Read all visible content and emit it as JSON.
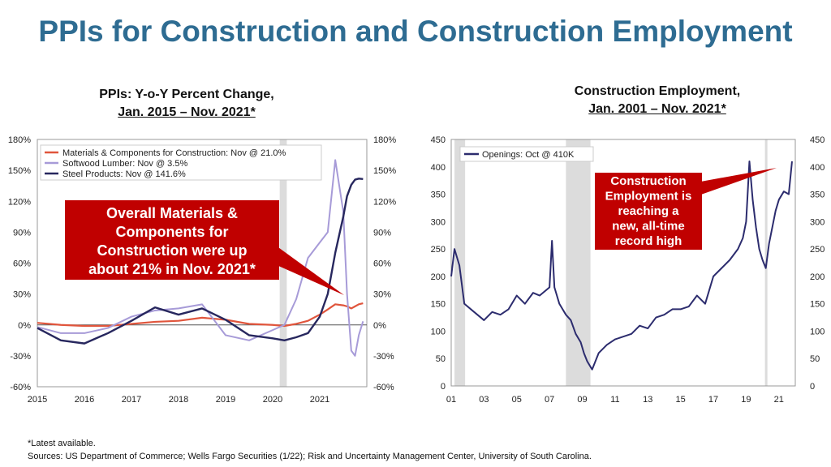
{
  "title": "PPIs for Construction and Construction Employment",
  "left_subtitle": {
    "line1": "PPIs: Y-o-Y Percent Change,",
    "line2": "Jan. 2015 – Nov. 2021*"
  },
  "right_subtitle": {
    "line1": "Construction Employment,",
    "line2": "Jan. 2001 – Nov. 2021*"
  },
  "left_callout": [
    "Overall Materials &",
    "Components for",
    "Construction were up",
    "about 21% in Nov. 2021*"
  ],
  "right_callout": [
    "Construction",
    "Employment is",
    "reaching a",
    "new, all-time",
    "record high"
  ],
  "footnote": "*Latest available.",
  "sources": "Sources: US Department of Commerce; Wells Fargo Securities (1/22); Risk and Uncertainty Management Center, University of South Carolina.",
  "colors": {
    "title": "#2e6c92",
    "callout": "#c00000",
    "materials": "#e0553c",
    "lumber": "#a79bd8",
    "steel": "#27275e",
    "openings": "#2c2c6e",
    "recession": "#dcdcdc"
  },
  "chart_data": [
    {
      "type": "line",
      "ylim": [
        -60,
        180
      ],
      "y_ticks": [
        "-60%",
        "-30%",
        "0%",
        "30%",
        "60%",
        "90%",
        "120%",
        "150%",
        "180%"
      ],
      "x_ticks": [
        "2015",
        "2016",
        "2017",
        "2018",
        "2019",
        "2020",
        "2021"
      ],
      "x_range": [
        2015.0,
        2022.0
      ],
      "recession_shading": [
        [
          2020.15,
          2020.3
        ]
      ],
      "x": [
        2015.0,
        2015.5,
        2016.0,
        2016.5,
        2017.0,
        2017.5,
        2018.0,
        2018.5,
        2019.0,
        2019.5,
        2020.0,
        2020.25,
        2020.5,
        2020.75,
        2021.0,
        2021.17,
        2021.33,
        2021.5,
        2021.58,
        2021.67,
        2021.75,
        2021.83,
        2021.92
      ],
      "series": [
        {
          "name": "Materials & Components for Construction: Nov @ 21.0%",
          "values": [
            2,
            0,
            -1,
            -1,
            1,
            3,
            4,
            7,
            5,
            1,
            0,
            -1,
            1,
            4,
            10,
            15,
            20,
            19,
            18,
            16,
            18,
            20,
            21
          ]
        },
        {
          "name": "Softwood Lumber: Nov @ 3.5%",
          "values": [
            -2,
            -8,
            -8,
            -3,
            8,
            14,
            16,
            20,
            -10,
            -15,
            -5,
            0,
            25,
            65,
            80,
            90,
            160,
            110,
            30,
            -25,
            -30,
            -10,
            3.5
          ]
        },
        {
          "name": "Steel Products: Nov @ 141.6%",
          "values": [
            -3,
            -15,
            -18,
            -8,
            4,
            17,
            10,
            16,
            5,
            -10,
            -13,
            -15,
            -12,
            -8,
            8,
            30,
            70,
            105,
            125,
            136,
            141,
            142,
            141.6
          ]
        }
      ]
    },
    {
      "type": "line",
      "ylim": [
        0,
        450
      ],
      "y_ticks": [
        "0",
        "50",
        "100",
        "150",
        "200",
        "250",
        "300",
        "350",
        "400",
        "450"
      ],
      "x_ticks": [
        "01",
        "03",
        "05",
        "07",
        "09",
        "11",
        "13",
        "15",
        "17",
        "19",
        "21"
      ],
      "x_range": [
        2001.0,
        2022.0
      ],
      "recession_shading": [
        [
          2001.2,
          2001.85
        ],
        [
          2008.0,
          2009.5
        ],
        [
          2020.15,
          2020.3
        ]
      ],
      "series": [
        {
          "name": "Openings: Oct @ 410K",
          "x": [
            2001.0,
            2001.2,
            2001.5,
            2001.8,
            2002.2,
            2002.6,
            2003.0,
            2003.5,
            2004.0,
            2004.5,
            2005.0,
            2005.5,
            2006.0,
            2006.4,
            2006.8,
            2007.0,
            2007.15,
            2007.3,
            2007.6,
            2008.0,
            2008.3,
            2008.6,
            2008.9,
            2009.1,
            2009.3,
            2009.6,
            2010.0,
            2010.5,
            2011.0,
            2011.5,
            2012.0,
            2012.5,
            2013.0,
            2013.5,
            2014.0,
            2014.5,
            2015.0,
            2015.5,
            2016.0,
            2016.5,
            2017.0,
            2017.5,
            2018.0,
            2018.5,
            2018.8,
            2019.0,
            2019.2,
            2019.4,
            2019.6,
            2019.8,
            2020.0,
            2020.2,
            2020.4,
            2020.6,
            2020.8,
            2021.0,
            2021.3,
            2021.6,
            2021.8
          ],
          "values": [
            200,
            250,
            220,
            150,
            140,
            130,
            120,
            135,
            130,
            140,
            165,
            150,
            170,
            165,
            175,
            180,
            265,
            180,
            150,
            130,
            120,
            95,
            80,
            60,
            45,
            30,
            60,
            75,
            85,
            90,
            95,
            110,
            105,
            125,
            130,
            140,
            140,
            145,
            165,
            150,
            200,
            215,
            230,
            250,
            270,
            300,
            410,
            340,
            290,
            250,
            230,
            215,
            260,
            290,
            320,
            340,
            355,
            350,
            410
          ]
        }
      ]
    }
  ]
}
